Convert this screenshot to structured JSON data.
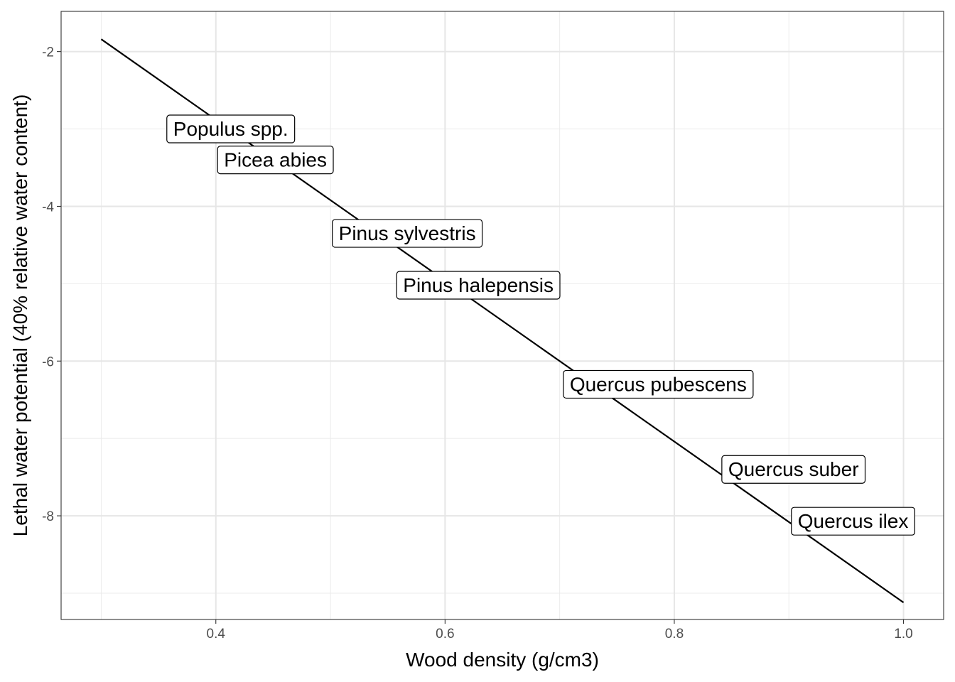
{
  "chart_data": {
    "type": "line",
    "title": "",
    "xlabel": "Wood density (g/cm3)",
    "ylabel": "Lethal water potential (40% relative water content)",
    "xlim": [
      0.265,
      1.035
    ],
    "ylim": [
      -9.34,
      -1.48
    ],
    "grid": true,
    "x_ticks": [
      0.4,
      0.6,
      0.8,
      1.0
    ],
    "x_tick_labels": [
      "0.4",
      "0.6",
      "0.8",
      "1.0"
    ],
    "y_ticks": [
      -2,
      -4,
      -6,
      -8
    ],
    "y_tick_labels": [
      "-2",
      "-4",
      "-6",
      "-8"
    ],
    "series": [
      {
        "x": [
          0.3,
          1.0
        ],
        "y": [
          -1.84,
          -9.12
        ],
        "color": "#000000"
      }
    ],
    "labels": [
      {
        "text": "Populus spp.",
        "x": 0.413,
        "y": -3.0
      },
      {
        "text": "Picea abies",
        "x": 0.452,
        "y": -3.4
      },
      {
        "text": "Pinus sylvestris",
        "x": 0.567,
        "y": -4.35
      },
      {
        "text": "Pinus halepensis",
        "x": 0.629,
        "y": -5.02
      },
      {
        "text": "Quercus pubescens",
        "x": 0.786,
        "y": -6.3
      },
      {
        "text": "Quercus suber",
        "x": 0.904,
        "y": -7.4
      },
      {
        "text": "Quercus ilex",
        "x": 0.956,
        "y": -8.07
      }
    ]
  }
}
